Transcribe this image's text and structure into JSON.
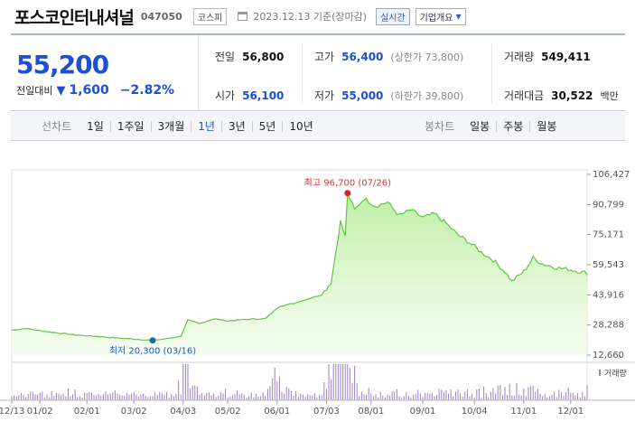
{
  "header": {
    "name": "포스코인터내셔널",
    "code": "047050",
    "market": "코스피",
    "date_text": "2023.12.13 기준(장마감)",
    "live_label": "실시간",
    "company_label": "기업개요"
  },
  "price": {
    "current": "55,200",
    "change_label": "전일대비",
    "change_value": "1,600",
    "change_pct": "−2.82%"
  },
  "stats": {
    "prev_label": "전일",
    "prev": "56,800",
    "open_label": "시가",
    "open": "56,100",
    "high_label": "고가",
    "high": "56,400",
    "upper_limit": "(상한가 73,800)",
    "low_label": "저가",
    "low": "55,000",
    "lower_limit": "(하한가 39,800)",
    "volume_label": "거래량",
    "volume": "549,411",
    "amount_label": "거래대금",
    "amount": "30,522",
    "amount_unit": "백만"
  },
  "toolbar": {
    "line_label": "선차트",
    "periods": [
      "1일",
      "1주일",
      "3개월",
      "1년",
      "3년",
      "5년",
      "10년"
    ],
    "active_period": "1년",
    "candle_label": "봉차트",
    "candles": [
      "일봉",
      "주봉",
      "월봉"
    ]
  },
  "chart_data": {
    "type": "area",
    "y_ticks": [
      "106,427",
      "90,799",
      "75,171",
      "59,543",
      "43,916",
      "28,288",
      "12,660"
    ],
    "ylim": [
      12660,
      106427
    ],
    "x_ticks": [
      "12/13",
      "01/02",
      "02/01",
      "03/02",
      "04/03",
      "05/02",
      "06/01",
      "07/03",
      "08/01",
      "09/01",
      "10/04",
      "11/01",
      "12/01"
    ],
    "x_tick_index": [
      0,
      12,
      32,
      52,
      73,
      92,
      113,
      134,
      153,
      175,
      197,
      218,
      238
    ],
    "num_points": 246,
    "max_annotation": "최고 96,700 (07/26)",
    "max_index": 143,
    "max_value": 96700,
    "min_annotation": "최저 20,300 (03/16)",
    "min_index": 60,
    "min_value": 20300,
    "volume_label": "거래량",
    "price_keypoints": [
      [
        0,
        25600
      ],
      [
        6,
        26500
      ],
      [
        12,
        25300
      ],
      [
        20,
        24100
      ],
      [
        28,
        23000
      ],
      [
        36,
        22400
      ],
      [
        44,
        21600
      ],
      [
        52,
        21000
      ],
      [
        60,
        20300
      ],
      [
        66,
        21200
      ],
      [
        72,
        22500
      ],
      [
        75,
        30800
      ],
      [
        80,
        29000
      ],
      [
        86,
        31500
      ],
      [
        92,
        30400
      ],
      [
        100,
        31200
      ],
      [
        108,
        31600
      ],
      [
        114,
        38000
      ],
      [
        120,
        39500
      ],
      [
        126,
        41800
      ],
      [
        132,
        44000
      ],
      [
        136,
        50500
      ],
      [
        140,
        82000
      ],
      [
        142,
        74000
      ],
      [
        143,
        96700
      ],
      [
        146,
        88000
      ],
      [
        150,
        94000
      ],
      [
        155,
        90000
      ],
      [
        160,
        92000
      ],
      [
        165,
        85000
      ],
      [
        170,
        88000
      ],
      [
        175,
        84000
      ],
      [
        180,
        86000
      ],
      [
        185,
        81000
      ],
      [
        190,
        75000
      ],
      [
        195,
        71000
      ],
      [
        200,
        66000
      ],
      [
        205,
        62000
      ],
      [
        210,
        56000
      ],
      [
        213,
        51000
      ],
      [
        218,
        56000
      ],
      [
        222,
        63000
      ],
      [
        226,
        60000
      ],
      [
        232,
        58000
      ],
      [
        238,
        57000
      ],
      [
        242,
        56000
      ],
      [
        245,
        55200
      ]
    ]
  }
}
